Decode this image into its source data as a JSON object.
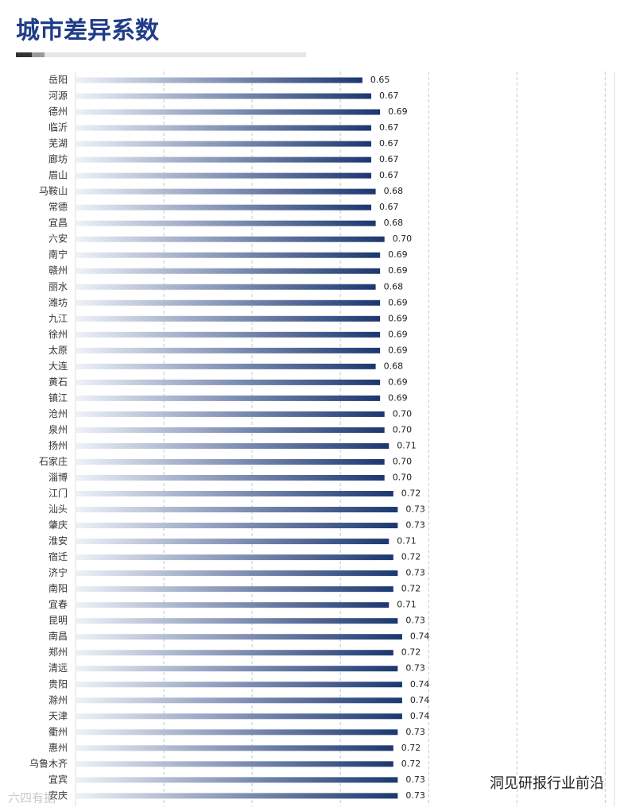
{
  "chart_data": {
    "type": "hbar",
    "title": "城市差异系数",
    "categories": [
      "岳阳",
      "河源",
      "德州",
      "临沂",
      "芜湖",
      "廊坊",
      "眉山",
      "马鞍山",
      "常德",
      "宜昌",
      "六安",
      "南宁",
      "赣州",
      "丽水",
      "潍坊",
      "九江",
      "徐州",
      "太原",
      "大连",
      "黄石",
      "镇江",
      "沧州",
      "泉州",
      "扬州",
      "石家庄",
      "淄博",
      "江门",
      "汕头",
      "肇庆",
      "淮安",
      "宿迁",
      "济宁",
      "南阳",
      "宜春",
      "昆明",
      "南昌",
      "郑州",
      "清远",
      "贵阳",
      "滁州",
      "天津",
      "衢州",
      "惠州",
      "乌鲁木齐",
      "宜宾",
      "安庆"
    ],
    "values": [
      0.65,
      0.67,
      0.69,
      0.67,
      0.67,
      0.67,
      0.67,
      0.68,
      0.67,
      0.68,
      0.7,
      0.69,
      0.69,
      0.68,
      0.69,
      0.69,
      0.69,
      0.69,
      0.68,
      0.69,
      0.69,
      0.7,
      0.7,
      0.71,
      0.7,
      0.7,
      0.72,
      0.73,
      0.73,
      0.71,
      0.72,
      0.73,
      0.72,
      0.71,
      0.73,
      0.74,
      0.72,
      0.73,
      0.74,
      0.74,
      0.74,
      0.73,
      0.72,
      0.72,
      0.73,
      0.73
    ],
    "value_labels": [
      "0.65",
      "0.67",
      "0.69",
      "0.67",
      "0.67",
      "0.67",
      "0.67",
      "0.68",
      "0.67",
      "0.68",
      "0.70",
      "0.69",
      "0.69",
      "0.68",
      "0.69",
      "0.69",
      "0.69",
      "0.69",
      "0.68",
      "0.69",
      "0.69",
      "0.70",
      "0.70",
      "0.71",
      "0.70",
      "0.70",
      "0.72",
      "0.73",
      "0.73",
      "0.71",
      "0.72",
      "0.73",
      "0.72",
      "0.71",
      "0.73",
      "0.74",
      "0.72",
      "0.73",
      "0.74",
      "0.74",
      "0.74",
      "0.73",
      "0.72",
      "0.72",
      "0.73",
      "0.73"
    ],
    "color": "#1c3770",
    "xlim": [
      0,
      1.23
    ],
    "xticks": [
      0.2,
      0.4,
      0.6,
      0.8,
      1.0,
      1.2
    ],
    "grid": true,
    "watermarks": [
      "六四有据",
      "洞见研报行业前沿"
    ]
  }
}
